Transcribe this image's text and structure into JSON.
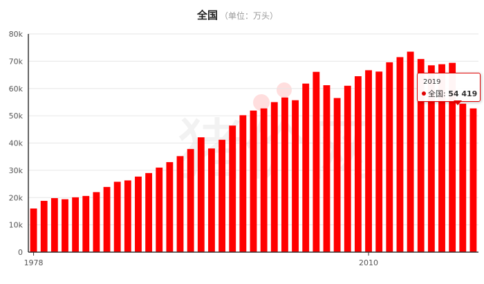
{
  "colors": {
    "bar": "#ff0000",
    "axis": "#333333",
    "grid": "#e6e6e6",
    "accent": "#e10000"
  },
  "watermark": "猪价网",
  "tooltip": {
    "year": "2019",
    "series": "全国",
    "separator": ":",
    "value": "54 419"
  },
  "chart_data": {
    "type": "bar",
    "title": "全国",
    "subtitle": "（单位：万头）",
    "series_name": "全国",
    "x": [
      1978,
      1979,
      1980,
      1981,
      1982,
      1983,
      1984,
      1985,
      1986,
      1987,
      1988,
      1989,
      1990,
      1991,
      1992,
      1993,
      1994,
      1995,
      1996,
      1997,
      1998,
      1999,
      2000,
      2001,
      2002,
      2003,
      2004,
      2005,
      2006,
      2007,
      2008,
      2009,
      2010,
      2011,
      2012,
      2013,
      2014,
      2015,
      2016,
      2017,
      2018,
      2019,
      2020
    ],
    "values": [
      16000,
      18800,
      19800,
      19400,
      20100,
      20600,
      22000,
      23900,
      25800,
      26300,
      27700,
      29000,
      31000,
      33000,
      35200,
      37800,
      42100,
      38000,
      41200,
      46400,
      50200,
      51900,
      52700,
      55000,
      56700,
      55700,
      61800,
      66100,
      61200,
      56500,
      61000,
      64500,
      66700,
      66200,
      69600,
      71500,
      73500,
      70800,
      68500,
      68900,
      69400,
      54419,
      52700
    ],
    "tick_labels": [
      "0",
      "10k",
      "20k",
      "30k",
      "40k",
      "50k",
      "60k",
      "70k",
      "80k"
    ],
    "x_tick_labels": [
      "1978",
      "2010"
    ],
    "x_tick_years": [
      1978,
      2010
    ],
    "ylim": [
      0,
      80000
    ],
    "y_tick_step": 10000,
    "grid": true,
    "legend": "none",
    "highlight_year": 2019
  }
}
